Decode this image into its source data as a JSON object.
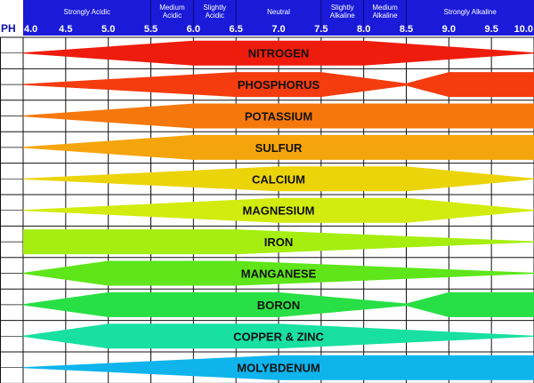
{
  "chart_data": {
    "type": "area",
    "axis_label": "PH",
    "xlim": [
      4.0,
      10.0
    ],
    "ticks": [
      {
        "value": 4.0,
        "label": "4.0"
      },
      {
        "value": 4.5,
        "label": "4.5"
      },
      {
        "value": 5.0,
        "label": "5.0"
      },
      {
        "value": 5.5,
        "label": "5.5"
      },
      {
        "value": 6.0,
        "label": "6.0"
      },
      {
        "value": 6.5,
        "label": "6.5"
      },
      {
        "value": 7.0,
        "label": "7.0"
      },
      {
        "value": 7.5,
        "label": "7.5"
      },
      {
        "value": 8.0,
        "label": "8.0"
      },
      {
        "value": 8.5,
        "label": "8.5"
      },
      {
        "value": 9.0,
        "label": "9.0"
      },
      {
        "value": 9.5,
        "label": "9.5"
      },
      {
        "value": 10.0,
        "label": "10.0"
      }
    ],
    "regions": [
      {
        "label": "Strongly Acidic",
        "from": 4.0,
        "to": 5.5
      },
      {
        "label": "Medium Acidic",
        "from": 5.5,
        "to": 6.0
      },
      {
        "label": "Slightly Acidic",
        "from": 6.0,
        "to": 6.5
      },
      {
        "label": "Neutral",
        "from": 6.5,
        "to": 7.5
      },
      {
        "label": "Slightly Alkaline",
        "from": 7.5,
        "to": 8.0
      },
      {
        "label": "Medium Alkaline",
        "from": 8.0,
        "to": 8.5
      },
      {
        "label": "Strongly Alkaline",
        "from": 8.5,
        "to": 10.0
      }
    ],
    "series": [
      {
        "name": "NITROGEN",
        "color": "#ee1c0d",
        "availability": [
          [
            4.0,
            0.0
          ],
          [
            6.0,
            1.0
          ],
          [
            8.0,
            1.0
          ],
          [
            10.0,
            0.0
          ]
        ]
      },
      {
        "name": "PHOSPHORUS",
        "color": "#f43c0f",
        "availability": [
          [
            4.0,
            0.0
          ],
          [
            6.5,
            1.0
          ],
          [
            7.5,
            1.0
          ],
          [
            8.5,
            0.1
          ],
          [
            9.0,
            1.0
          ],
          [
            10.0,
            1.0
          ]
        ]
      },
      {
        "name": "POTASSIUM",
        "color": "#f5780c",
        "availability": [
          [
            4.0,
            0.0
          ],
          [
            6.0,
            1.0
          ],
          [
            10.0,
            1.0
          ]
        ]
      },
      {
        "name": "SULFUR",
        "color": "#f5a50c",
        "availability": [
          [
            4.0,
            0.0
          ],
          [
            6.0,
            1.0
          ],
          [
            10.0,
            1.0
          ]
        ]
      },
      {
        "name": "CALCIUM",
        "color": "#ecd40a",
        "availability": [
          [
            4.0,
            0.0
          ],
          [
            7.0,
            1.0
          ],
          [
            8.5,
            1.0
          ],
          [
            10.0,
            0.0
          ]
        ]
      },
      {
        "name": "MAGNESIUM",
        "color": "#d2ec0f",
        "availability": [
          [
            4.0,
            0.0
          ],
          [
            7.0,
            1.0
          ],
          [
            8.5,
            1.0
          ],
          [
            10.0,
            0.0
          ]
        ]
      },
      {
        "name": "IRON",
        "color": "#a6ee10",
        "availability": [
          [
            4.0,
            1.0
          ],
          [
            6.5,
            1.0
          ],
          [
            10.0,
            0.0
          ]
        ]
      },
      {
        "name": "MANGANESE",
        "color": "#5fe61a",
        "availability": [
          [
            4.0,
            0.0
          ],
          [
            5.0,
            1.0
          ],
          [
            6.5,
            1.0
          ],
          [
            10.0,
            0.0
          ]
        ]
      },
      {
        "name": "BORON",
        "color": "#28e045",
        "availability": [
          [
            4.0,
            0.0
          ],
          [
            5.0,
            1.0
          ],
          [
            7.0,
            1.0
          ],
          [
            8.5,
            0.1
          ],
          [
            9.0,
            1.0
          ],
          [
            10.0,
            1.0
          ]
        ]
      },
      {
        "name": "COPPER & ZINC",
        "color": "#18e0a0",
        "availability": [
          [
            4.0,
            0.0
          ],
          [
            5.0,
            1.0
          ],
          [
            7.0,
            1.0
          ],
          [
            10.0,
            0.0
          ]
        ]
      },
      {
        "name": "MOLYBDENUM",
        "color": "#0fb4ec",
        "availability": [
          [
            4.0,
            0.0
          ],
          [
            7.0,
            1.0
          ],
          [
            10.0,
            1.0
          ]
        ]
      }
    ]
  }
}
